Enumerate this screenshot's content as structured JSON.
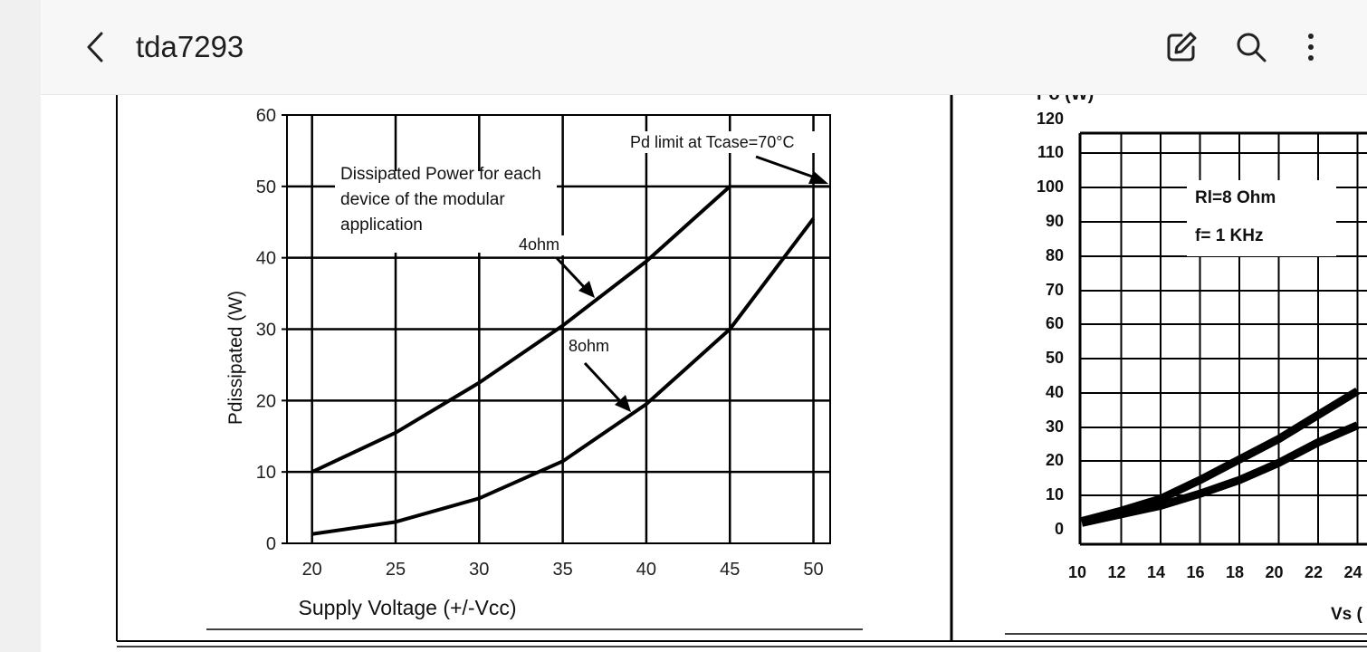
{
  "app": {
    "title": "tda7293",
    "icons": {
      "back": "chevron-left-icon",
      "edit": "edit-icon",
      "search": "search-icon",
      "more": "more-vertical-icon"
    }
  },
  "chart_data": [
    {
      "type": "line",
      "title": "",
      "xlabel": "Supply Voltage (+/-Vcc)",
      "ylabel": "Pdissipated (W)",
      "xlim": [
        18.5,
        51
      ],
      "ylim": [
        0,
        60
      ],
      "x_ticks": [
        20,
        25,
        30,
        35,
        40,
        45,
        50
      ],
      "y_ticks": [
        0,
        10,
        20,
        30,
        40,
        50,
        60
      ],
      "grid": true,
      "series": [
        {
          "name": "4ohm",
          "x": [
            20,
            25,
            30,
            35,
            40,
            45
          ],
          "y": [
            10,
            15.5,
            22.5,
            30.5,
            39.5,
            50
          ]
        },
        {
          "name": "8ohm",
          "x": [
            20,
            25,
            30,
            35,
            40,
            45,
            50
          ],
          "y": [
            1.3,
            3,
            6.3,
            11.5,
            19.5,
            30,
            45.5
          ]
        }
      ],
      "annotations": {
        "description": [
          "Dissipated Power for each",
          "device of the modular",
          "application"
        ],
        "pd_limit": "Pd limit at Tcase=70°C",
        "pd_limit_value": 50
      }
    },
    {
      "type": "line",
      "title": "",
      "ylabel": "Po (W)",
      "xlabel": "Vs (",
      "x_ticks": [
        10,
        12,
        14,
        16,
        18,
        20,
        22,
        24
      ],
      "y_ticks": [
        0,
        10,
        20,
        30,
        40,
        50,
        60,
        70,
        80,
        90,
        100,
        110,
        120
      ],
      "grid": true,
      "legend": [
        "Rl=8 Ohm",
        "f= 1 KHz"
      ],
      "series": [
        {
          "x": [
            10,
            12,
            14,
            16,
            18,
            20,
            22,
            24
          ],
          "y": [
            2,
            5,
            8.5,
            14,
            20,
            26,
            33,
            40
          ]
        },
        {
          "x": [
            10,
            12,
            14,
            16,
            18,
            20,
            22,
            24
          ],
          "y": [
            1.5,
            4,
            6.5,
            10,
            14,
            19,
            25,
            30
          ]
        }
      ]
    }
  ]
}
